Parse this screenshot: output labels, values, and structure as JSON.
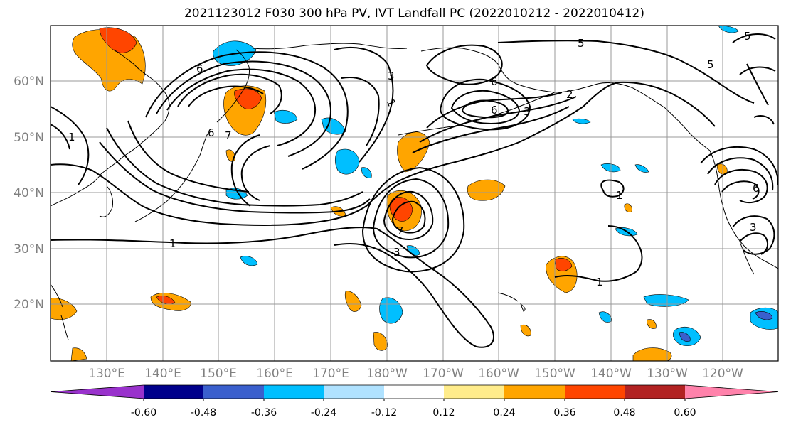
{
  "title": "2021123012 F030 300 hPa PV, IVT Landfall PC (2022010212 - 2022010412)",
  "map": {
    "lat_labels": [
      "60°N",
      "50°N",
      "40°N",
      "30°N",
      "20°N"
    ],
    "lon_labels": [
      "130°E",
      "140°E",
      "150°E",
      "160°E",
      "170°E",
      "180°W",
      "170°W",
      "160°W",
      "150°W",
      "140°W",
      "130°W",
      "120°W"
    ],
    "contour_labels": [
      "1",
      "1",
      "1",
      "1",
      "1",
      "2",
      "3",
      "3",
      "3",
      "3",
      "5",
      "5",
      "5",
      "6",
      "6",
      "6",
      "6",
      "6",
      "7",
      "7"
    ]
  },
  "colorbar": {
    "tick_labels": [
      "-0.60",
      "-0.48",
      "-0.36",
      "-0.24",
      "-0.12",
      "0.12",
      "0.24",
      "0.36",
      "0.48",
      "0.60"
    ],
    "colors": [
      "#9932cc",
      "#00008b",
      "#3a5fcd",
      "#00bfff",
      "#b0e2ff",
      "#ffffff",
      "#ffec8b",
      "#ffa500",
      "#ff4500",
      "#b22222",
      "#ff82ab"
    ]
  }
}
